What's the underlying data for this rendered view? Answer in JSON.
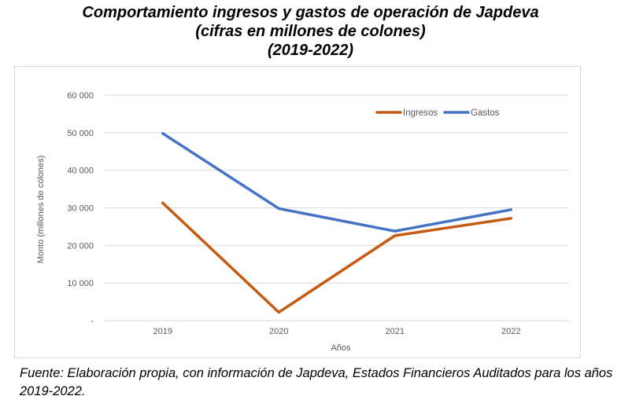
{
  "chart_data": {
    "type": "line",
    "title_lines": [
      "Comportamiento ingresos y gastos de operación de Japdeva",
      "(cifras en millones de colones)",
      "(2019-2022)"
    ],
    "xlabel": "Años",
    "ylabel": "Monto (millones de colones)",
    "categories": [
      "2019",
      "2020",
      "2021",
      "2022"
    ],
    "ylim": [
      0,
      60000
    ],
    "yticks": [
      0,
      10000,
      20000,
      30000,
      40000,
      50000,
      60000
    ],
    "ytick_labels": [
      "-",
      "10 000",
      "20 000",
      "30 000",
      "40 000",
      "50 000",
      "60 000"
    ],
    "grid": true,
    "legend_position": "top-right",
    "series": [
      {
        "name": "Ingresos",
        "color": "#c55a11",
        "values": [
          31300,
          2200,
          22600,
          27200
        ]
      },
      {
        "name": "Gastos",
        "color": "#4472c4",
        "values": [
          49800,
          29800,
          23800,
          29500
        ]
      }
    ]
  },
  "source_text": "Fuente: Elaboración propia, con información de Japdeva, Estados Financieros Auditados para los años 2019-2022."
}
